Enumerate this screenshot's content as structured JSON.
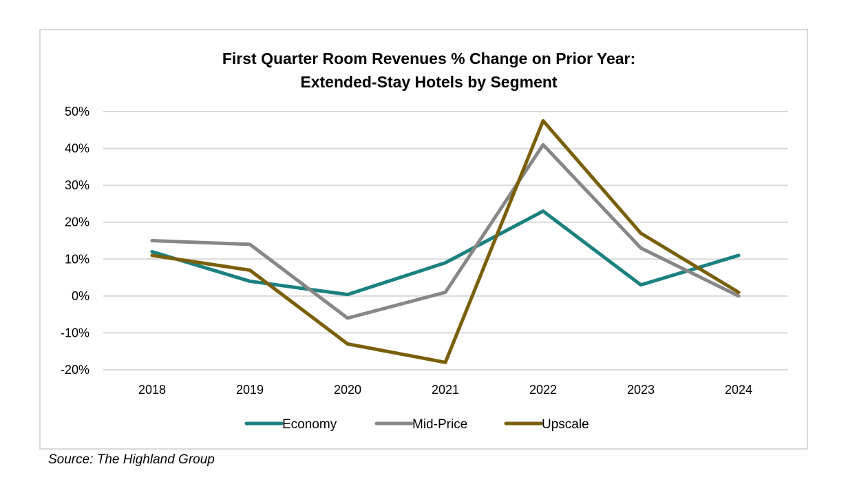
{
  "chart_data": {
    "type": "line",
    "title": [
      "First Quarter Room Revenues % Change on Prior Year:",
      "Extended-Stay Hotels by Segment"
    ],
    "xlabel": "",
    "ylabel": "",
    "categories": [
      "2018",
      "2019",
      "2020",
      "2021",
      "2022",
      "2023",
      "2024"
    ],
    "ylim": [
      -20,
      50
    ],
    "yticks": [
      50,
      40,
      30,
      20,
      10,
      0,
      -10,
      -20
    ],
    "ytick_labels": [
      "50%",
      "40%",
      "30%",
      "20%",
      "10%",
      "0%",
      "-10%",
      "-20%"
    ],
    "grid": true,
    "legend_position": "bottom",
    "series": [
      {
        "name": "Economy",
        "color": "#1a8080",
        "values": [
          12,
          4,
          0.4,
          9,
          23,
          3,
          11
        ]
      },
      {
        "name": "Mid-Price",
        "color": "#878787",
        "values": [
          15,
          14,
          -6,
          1,
          41,
          13,
          0
        ]
      },
      {
        "name": "Upscale",
        "color": "#7a5f0a",
        "values": [
          11,
          7,
          -13,
          -18,
          47.5,
          17,
          1
        ]
      }
    ]
  },
  "source": "Source: The Highland Group"
}
